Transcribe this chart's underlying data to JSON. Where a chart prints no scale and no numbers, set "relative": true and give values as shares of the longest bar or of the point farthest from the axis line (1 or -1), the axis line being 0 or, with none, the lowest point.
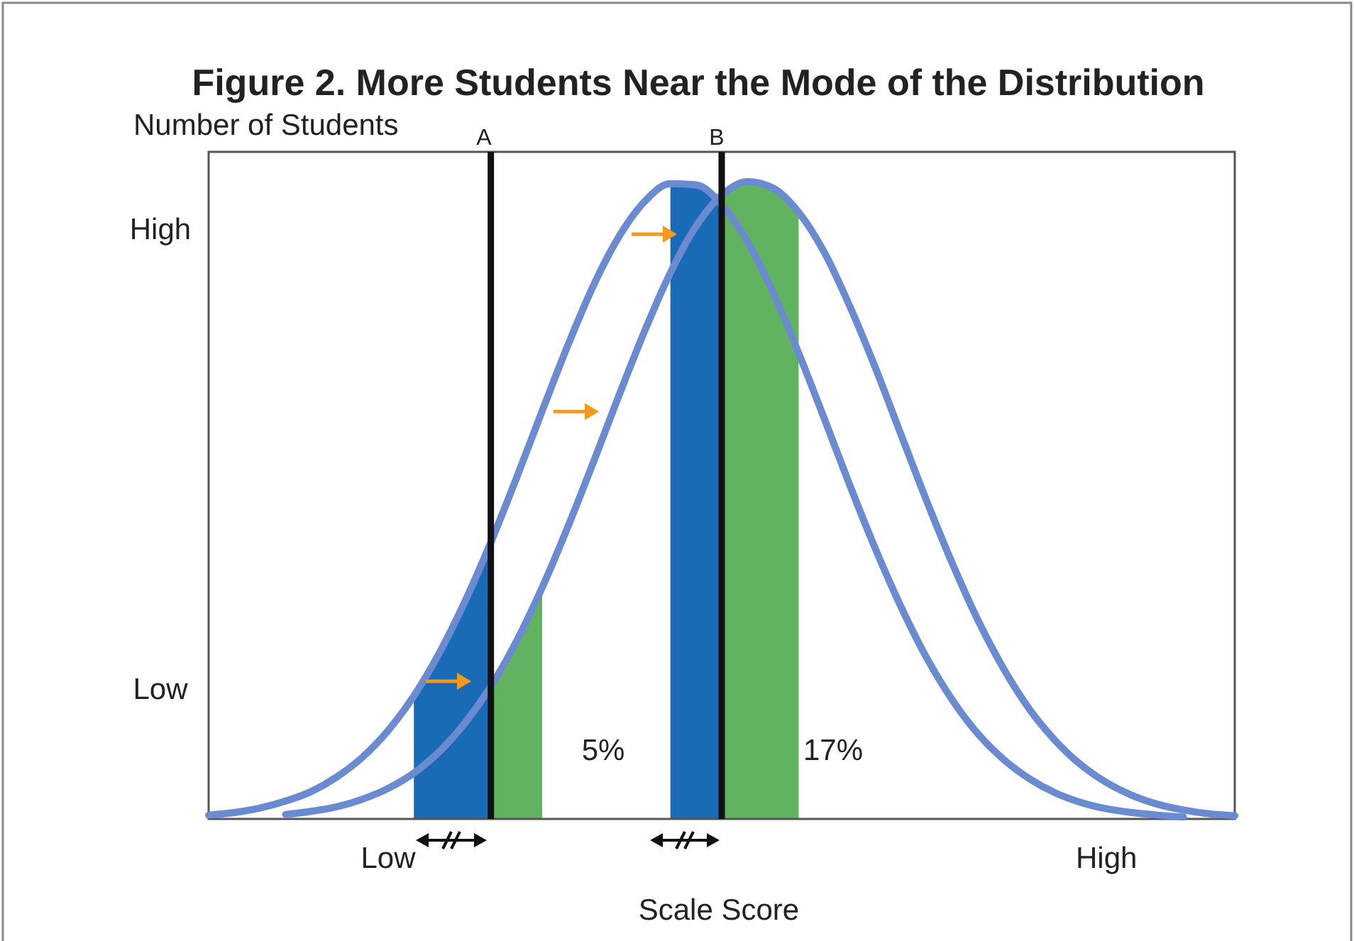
{
  "chart_data": {
    "type": "line",
    "title": "Figure 2. More Students Near the Mode of the Distribution",
    "xlabel": "Scale Score",
    "ylabel": "Number of Students",
    "relative": true,
    "marker": "none",
    "line_style": "solid",
    "categories": [
      null,
      null,
      null,
      null,
      null,
      null,
      null,
      "Low",
      null,
      null,
      null,
      null,
      null,
      null,
      null,
      null,
      null,
      null,
      null,
      null,
      null,
      null,
      null,
      null,
      null,
      null,
      null,
      null,
      null,
      null,
      null,
      null,
      null,
      null,
      null,
      "High",
      null,
      null,
      null,
      null,
      null
    ],
    "series": [
      {
        "type": "area",
        "color": "#1a6bb5",
        "values": [
          null,
          null,
          null,
          null,
          null,
          null,
          null,
          null,
          0.193,
          0.261,
          0.342,
          0.434,
          null,
          null,
          null,
          null,
          null,
          null,
          null,
          null,
          null,
          null,
          null,
          null,
          null,
          null,
          null,
          null,
          null,
          null,
          null,
          null,
          null,
          null,
          null,
          null,
          null,
          null,
          null,
          null,
          null
        ]
      },
      {
        "type": "area",
        "color": "#62b35f",
        "values": [
          null,
          null,
          null,
          null,
          null,
          null,
          null,
          null,
          null,
          null,
          null,
          0.208,
          0.279,
          0.363,
          null,
          null,
          null,
          null,
          null,
          null,
          null,
          null,
          null,
          null,
          null,
          null,
          null,
          null,
          null,
          null,
          null,
          null,
          null,
          null,
          null,
          null,
          null,
          null,
          null,
          null,
          null
        ]
      },
      {
        "type": "area",
        "color": "#1a6bb5",
        "values": [
          null,
          null,
          null,
          null,
          null,
          null,
          null,
          null,
          null,
          null,
          null,
          null,
          null,
          null,
          null,
          null,
          null,
          null,
          0.997,
          0.995,
          0.964,
          null,
          null,
          null,
          null,
          null,
          null,
          null,
          null,
          null,
          null,
          null,
          null,
          null,
          null,
          null,
          null,
          null,
          null,
          null,
          null
        ]
      },
      {
        "type": "area",
        "color": "#62b35f",
        "values": [
          null,
          null,
          null,
          null,
          null,
          null,
          null,
          null,
          null,
          null,
          null,
          null,
          null,
          null,
          null,
          null,
          null,
          null,
          null,
          null,
          0.979,
          1,
          0.99,
          0.952,
          null,
          null,
          null,
          null,
          null,
          null,
          null,
          null,
          null,
          null,
          null,
          null,
          null,
          null,
          null,
          null,
          null
        ]
      },
      {
        "color": "#6a8bd0",
        "values": [
          0.006,
          0.01,
          0.017,
          0.028,
          0.043,
          0.066,
          0.097,
          0.139,
          0.193,
          0.261,
          0.342,
          0.434,
          0.535,
          0.64,
          0.743,
          0.837,
          0.914,
          0.969,
          0.997,
          0.995,
          0.964,
          0.906,
          0.826,
          0.731,
          0.628,
          0.523,
          0.423,
          0.332,
          0.252,
          0.186,
          0.133,
          0.093,
          0.063,
          0.041,
          0.026,
          0.016,
          0.01,
          0.006,
          0.003,
          null,
          null
        ]
      },
      {
        "color": "#6a8bd0",
        "values": [
          null,
          null,
          null,
          0.007,
          0.012,
          0.019,
          0.031,
          0.048,
          0.072,
          0.106,
          0.151,
          0.208,
          0.279,
          0.363,
          0.458,
          0.56,
          0.665,
          0.766,
          0.857,
          0.93,
          0.979,
          1,
          0.99,
          0.952,
          0.889,
          0.804,
          0.707,
          0.602,
          0.498,
          0.4,
          0.311,
          0.235,
          0.172,
          0.123,
          0.085,
          0.057,
          0.037,
          0.023,
          0.014,
          0.008,
          0.005
        ]
      }
    ],
    "annotations": [
      "High",
      "Low",
      "5%",
      "17%",
      "A",
      "B"
    ]
  }
}
